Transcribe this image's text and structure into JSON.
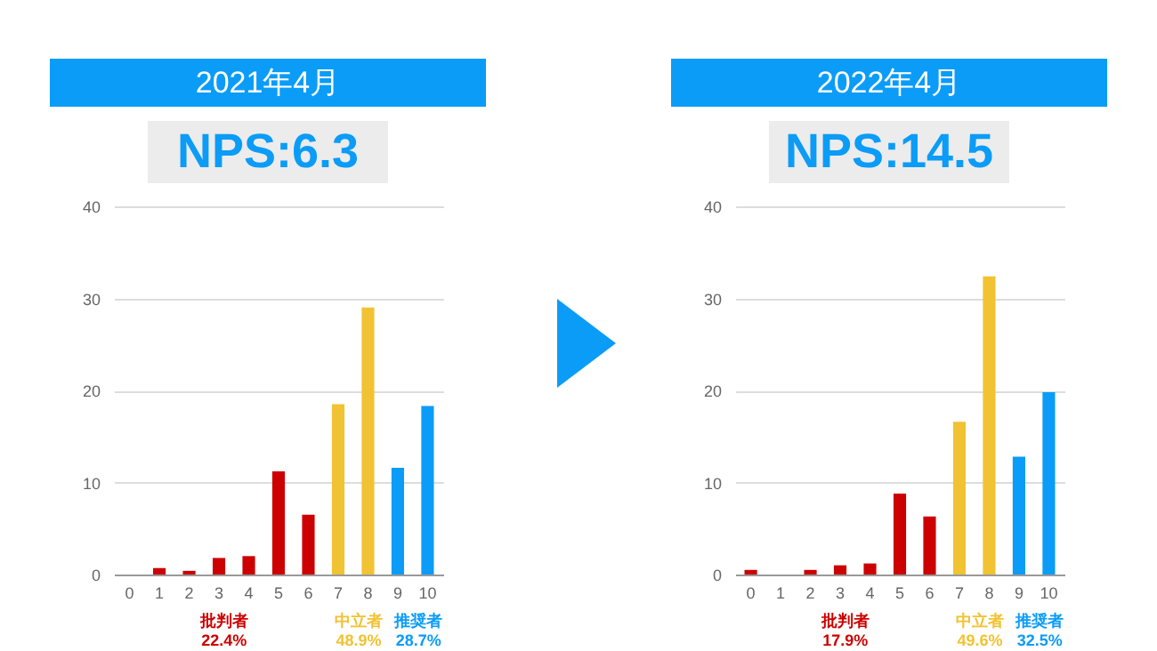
{
  "chart_data": [
    {
      "type": "bar",
      "title": "2021年4月",
      "subtitle": "NPS:6.3",
      "categories": [
        "0",
        "1",
        "2",
        "3",
        "4",
        "5",
        "6",
        "7",
        "8",
        "9",
        "10"
      ],
      "series": [
        {
          "name": "批判者",
          "color": "#cc0000",
          "values": [
            0,
            0.7,
            0.4,
            1.8,
            2.0,
            11.2,
            6.5,
            null,
            null,
            null,
            null
          ]
        },
        {
          "name": "中立者",
          "color": "#f1c232",
          "values": [
            null,
            null,
            null,
            null,
            null,
            null,
            null,
            18.5,
            29.0,
            null,
            null
          ]
        },
        {
          "name": "推奨者",
          "color": "#0b9cf8",
          "values": [
            null,
            null,
            null,
            null,
            null,
            null,
            null,
            null,
            null,
            11.6,
            18.3
          ]
        }
      ],
      "annotations": [
        "22.4%",
        "48.9%",
        "28.7%"
      ],
      "ylim": [
        0,
        40
      ],
      "yticks": [
        0,
        10,
        20,
        30,
        40
      ],
      "grid": "y",
      "legend": false
    },
    {
      "type": "bar",
      "title": "2022年4月",
      "subtitle": "NPS:14.5",
      "categories": [
        "0",
        "1",
        "2",
        "3",
        "4",
        "5",
        "6",
        "7",
        "8",
        "9",
        "10"
      ],
      "series": [
        {
          "name": "批判者",
          "color": "#cc0000",
          "values": [
            0.5,
            0,
            0.5,
            1.0,
            1.2,
            8.8,
            6.3,
            null,
            null,
            null,
            null
          ]
        },
        {
          "name": "中立者",
          "color": "#f1c232",
          "values": [
            null,
            null,
            null,
            null,
            null,
            null,
            null,
            16.6,
            32.4,
            null,
            null
          ]
        },
        {
          "name": "推奨者",
          "color": "#0b9cf8",
          "values": [
            null,
            null,
            null,
            null,
            null,
            null,
            null,
            null,
            null,
            12.8,
            19.8
          ]
        }
      ],
      "annotations": [
        "17.9%",
        "49.6%",
        "32.5%"
      ],
      "ylim": [
        0,
        40
      ],
      "yticks": [
        0,
        10,
        20,
        30,
        40
      ],
      "grid": "y",
      "legend": false
    }
  ]
}
